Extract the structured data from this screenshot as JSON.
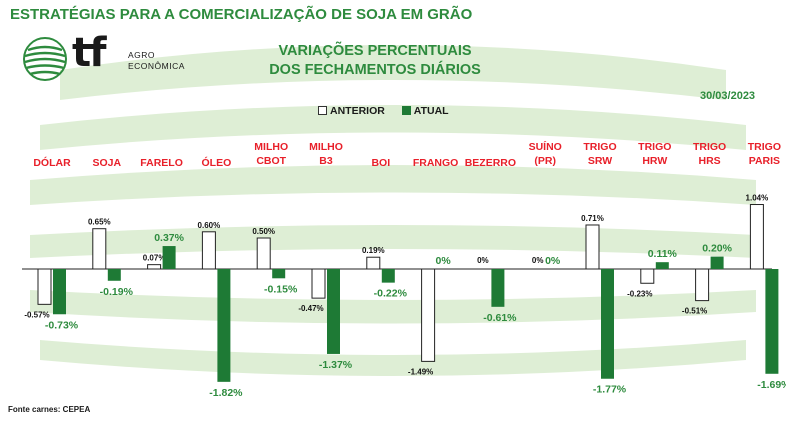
{
  "header": {
    "title": "ESTRATÉGIAS PARA A COMERCIALIZAÇÃO DE SOJA EM GRÃO",
    "subtitle_line1": "VARIAÇÕES PERCENTUAIS",
    "subtitle_line2": "DOS FECHAMENTOS DIÁRIOS",
    "date": "30/03/2023"
  },
  "logo": {
    "mark": "tf",
    "line1": "AGRO",
    "line2": "ECONÔMICA"
  },
  "legend": {
    "anterior": "ANTERIOR",
    "atual": "ATUAL"
  },
  "footnote": "Fonte carnes: CEPEA",
  "colors": {
    "title": "#2e8b3e",
    "category": "#e8202a",
    "atual_bar": "#1e7a35",
    "anterior_bar": "#ffffff",
    "negative_atual_label": "#2e8b3e",
    "atual_positive_label": "#2e8b3e"
  },
  "chart_data": {
    "type": "bar",
    "categories": [
      [
        "DÓLAR"
      ],
      [
        "SOJA"
      ],
      [
        "FARELO"
      ],
      [
        "ÓLEO"
      ],
      [
        "MILHO",
        "CBOT"
      ],
      [
        "MILHO",
        "B3"
      ],
      [
        "BOI"
      ],
      [
        "FRANGO"
      ],
      [
        "BEZERRO"
      ],
      [
        "SUÍNO",
        "(PR)"
      ],
      [
        "TRIGO",
        "SRW"
      ],
      [
        "TRIGO",
        "HRW"
      ],
      [
        "TRIGO",
        "HRS"
      ],
      [
        "TRIGO",
        "PARIS"
      ]
    ],
    "series": [
      {
        "name": "ANTERIOR",
        "values": [
          -0.57,
          0.65,
          0.07,
          0.6,
          0.5,
          -0.47,
          0.19,
          -1.49,
          0,
          0,
          0.71,
          -0.23,
          -0.51,
          1.04
        ],
        "labels": [
          "-0.57%",
          "0.65%",
          "0.07%",
          "0.60%",
          "0.50%",
          "-0.47%",
          "0.19%",
          "-1.49%",
          "0%",
          "0%",
          "0.71%",
          "-0.23%",
          "-0.51%",
          "1.04%"
        ]
      },
      {
        "name": "ATUAL",
        "values": [
          -0.73,
          -0.19,
          0.37,
          -1.82,
          -0.15,
          -1.37,
          -0.22,
          0,
          -0.61,
          0,
          -1.77,
          0.11,
          0.2,
          -1.69
        ],
        "labels": [
          "-0.73%",
          "-0.19%",
          "0.37%",
          "-1.82%",
          "-0.15%",
          "-1.37%",
          "-0.22%",
          "0%",
          "-0.61%",
          "0%",
          "-1.77%",
          "0.11%",
          "0.20%",
          "-1.69%"
        ]
      }
    ],
    "ylim": [
      -1.9,
      1.1
    ],
    "grid": false,
    "legend_position": "top-center"
  }
}
